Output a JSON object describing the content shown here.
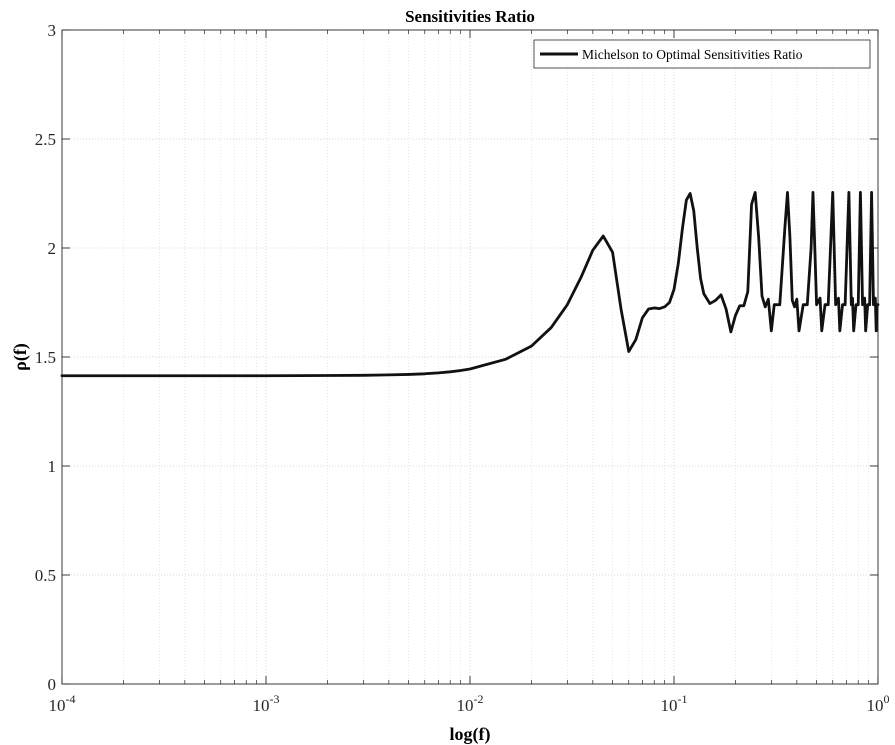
{
  "chart_data": {
    "type": "line",
    "title": "Sensitivities Ratio",
    "xlabel": "log(f)",
    "ylabel": "ρ(f)",
    "x_scale": "log",
    "xlim": [
      0.0001,
      1
    ],
    "ylim": [
      0,
      3
    ],
    "x_ticks": [
      {
        "value": 0.0001,
        "base": "10",
        "exp": "-4"
      },
      {
        "value": 0.001,
        "base": "10",
        "exp": "-3"
      },
      {
        "value": 0.01,
        "base": "10",
        "exp": "-2"
      },
      {
        "value": 0.1,
        "base": "10",
        "exp": "-1"
      },
      {
        "value": 1,
        "base": "10",
        "exp": "0"
      }
    ],
    "y_ticks": [
      {
        "value": 0,
        "label": "0"
      },
      {
        "value": 0.5,
        "label": "0.5"
      },
      {
        "value": 1,
        "label": "1"
      },
      {
        "value": 1.5,
        "label": "1.5"
      },
      {
        "value": 2,
        "label": "2"
      },
      {
        "value": 2.5,
        "label": "2.5"
      },
      {
        "value": 3,
        "label": "3"
      }
    ],
    "grid": true,
    "legend_position": "top-right",
    "series": [
      {
        "name": "Michelson to Optimal Sensitivities Ratio",
        "color": "#111111",
        "points": [
          [
            0.0001,
            1.414
          ],
          [
            0.0005,
            1.414
          ],
          [
            0.001,
            1.414
          ],
          [
            0.002,
            1.415
          ],
          [
            0.003,
            1.416
          ],
          [
            0.004,
            1.418
          ],
          [
            0.005,
            1.42
          ],
          [
            0.006,
            1.423
          ],
          [
            0.007,
            1.427
          ],
          [
            0.008,
            1.432
          ],
          [
            0.009,
            1.438
          ],
          [
            0.01,
            1.445
          ],
          [
            0.015,
            1.49
          ],
          [
            0.02,
            1.55
          ],
          [
            0.025,
            1.635
          ],
          [
            0.03,
            1.74
          ],
          [
            0.035,
            1.865
          ],
          [
            0.04,
            1.99
          ],
          [
            0.045,
            2.055
          ],
          [
            0.05,
            1.98
          ],
          [
            0.055,
            1.72
          ],
          [
            0.06,
            1.525
          ],
          [
            0.065,
            1.58
          ],
          [
            0.07,
            1.68
          ],
          [
            0.075,
            1.72
          ],
          [
            0.08,
            1.725
          ],
          [
            0.085,
            1.722
          ],
          [
            0.09,
            1.73
          ],
          [
            0.095,
            1.75
          ],
          [
            0.1,
            1.81
          ],
          [
            0.105,
            1.93
          ],
          [
            0.11,
            2.09
          ],
          [
            0.115,
            2.22
          ],
          [
            0.12,
            2.25
          ],
          [
            0.125,
            2.17
          ],
          [
            0.13,
            2.0
          ],
          [
            0.135,
            1.86
          ],
          [
            0.14,
            1.79
          ],
          [
            0.15,
            1.745
          ],
          [
            0.16,
            1.76
          ],
          [
            0.17,
            1.785
          ],
          [
            0.18,
            1.72
          ],
          [
            0.19,
            1.615
          ],
          [
            0.2,
            1.69
          ],
          [
            0.21,
            1.735
          ],
          [
            0.22,
            1.735
          ],
          [
            0.23,
            1.8
          ],
          [
            0.24,
            2.2
          ],
          [
            0.25,
            2.255
          ],
          [
            0.26,
            2.05
          ],
          [
            0.27,
            1.78
          ],
          [
            0.28,
            1.73
          ],
          [
            0.29,
            1.765
          ],
          [
            0.3,
            1.62
          ],
          [
            0.31,
            1.74
          ],
          [
            0.33,
            1.74
          ],
          [
            0.35,
            2.1
          ],
          [
            0.36,
            2.255
          ],
          [
            0.37,
            2.05
          ],
          [
            0.38,
            1.76
          ],
          [
            0.39,
            1.73
          ],
          [
            0.4,
            1.765
          ],
          [
            0.41,
            1.62
          ],
          [
            0.43,
            1.74
          ],
          [
            0.45,
            1.74
          ],
          [
            0.47,
            2.0
          ],
          [
            0.48,
            2.255
          ],
          [
            0.49,
            2.0
          ],
          [
            0.5,
            1.74
          ],
          [
            0.52,
            1.77
          ],
          [
            0.53,
            1.62
          ],
          [
            0.55,
            1.74
          ],
          [
            0.57,
            1.74
          ],
          [
            0.6,
            2.255
          ],
          [
            0.62,
            1.74
          ],
          [
            0.64,
            1.77
          ],
          [
            0.65,
            1.62
          ],
          [
            0.67,
            1.74
          ],
          [
            0.69,
            1.74
          ],
          [
            0.72,
            2.255
          ],
          [
            0.74,
            1.74
          ],
          [
            0.75,
            1.77
          ],
          [
            0.76,
            1.62
          ],
          [
            0.78,
            1.74
          ],
          [
            0.8,
            1.74
          ],
          [
            0.82,
            2.255
          ],
          [
            0.84,
            1.74
          ],
          [
            0.86,
            1.77
          ],
          [
            0.87,
            1.62
          ],
          [
            0.89,
            1.74
          ],
          [
            0.91,
            1.74
          ],
          [
            0.93,
            2.255
          ],
          [
            0.95,
            1.74
          ],
          [
            0.97,
            1.77
          ],
          [
            0.98,
            1.62
          ],
          [
            0.99,
            1.74
          ],
          [
            1.0,
            1.74
          ]
        ]
      }
    ]
  }
}
